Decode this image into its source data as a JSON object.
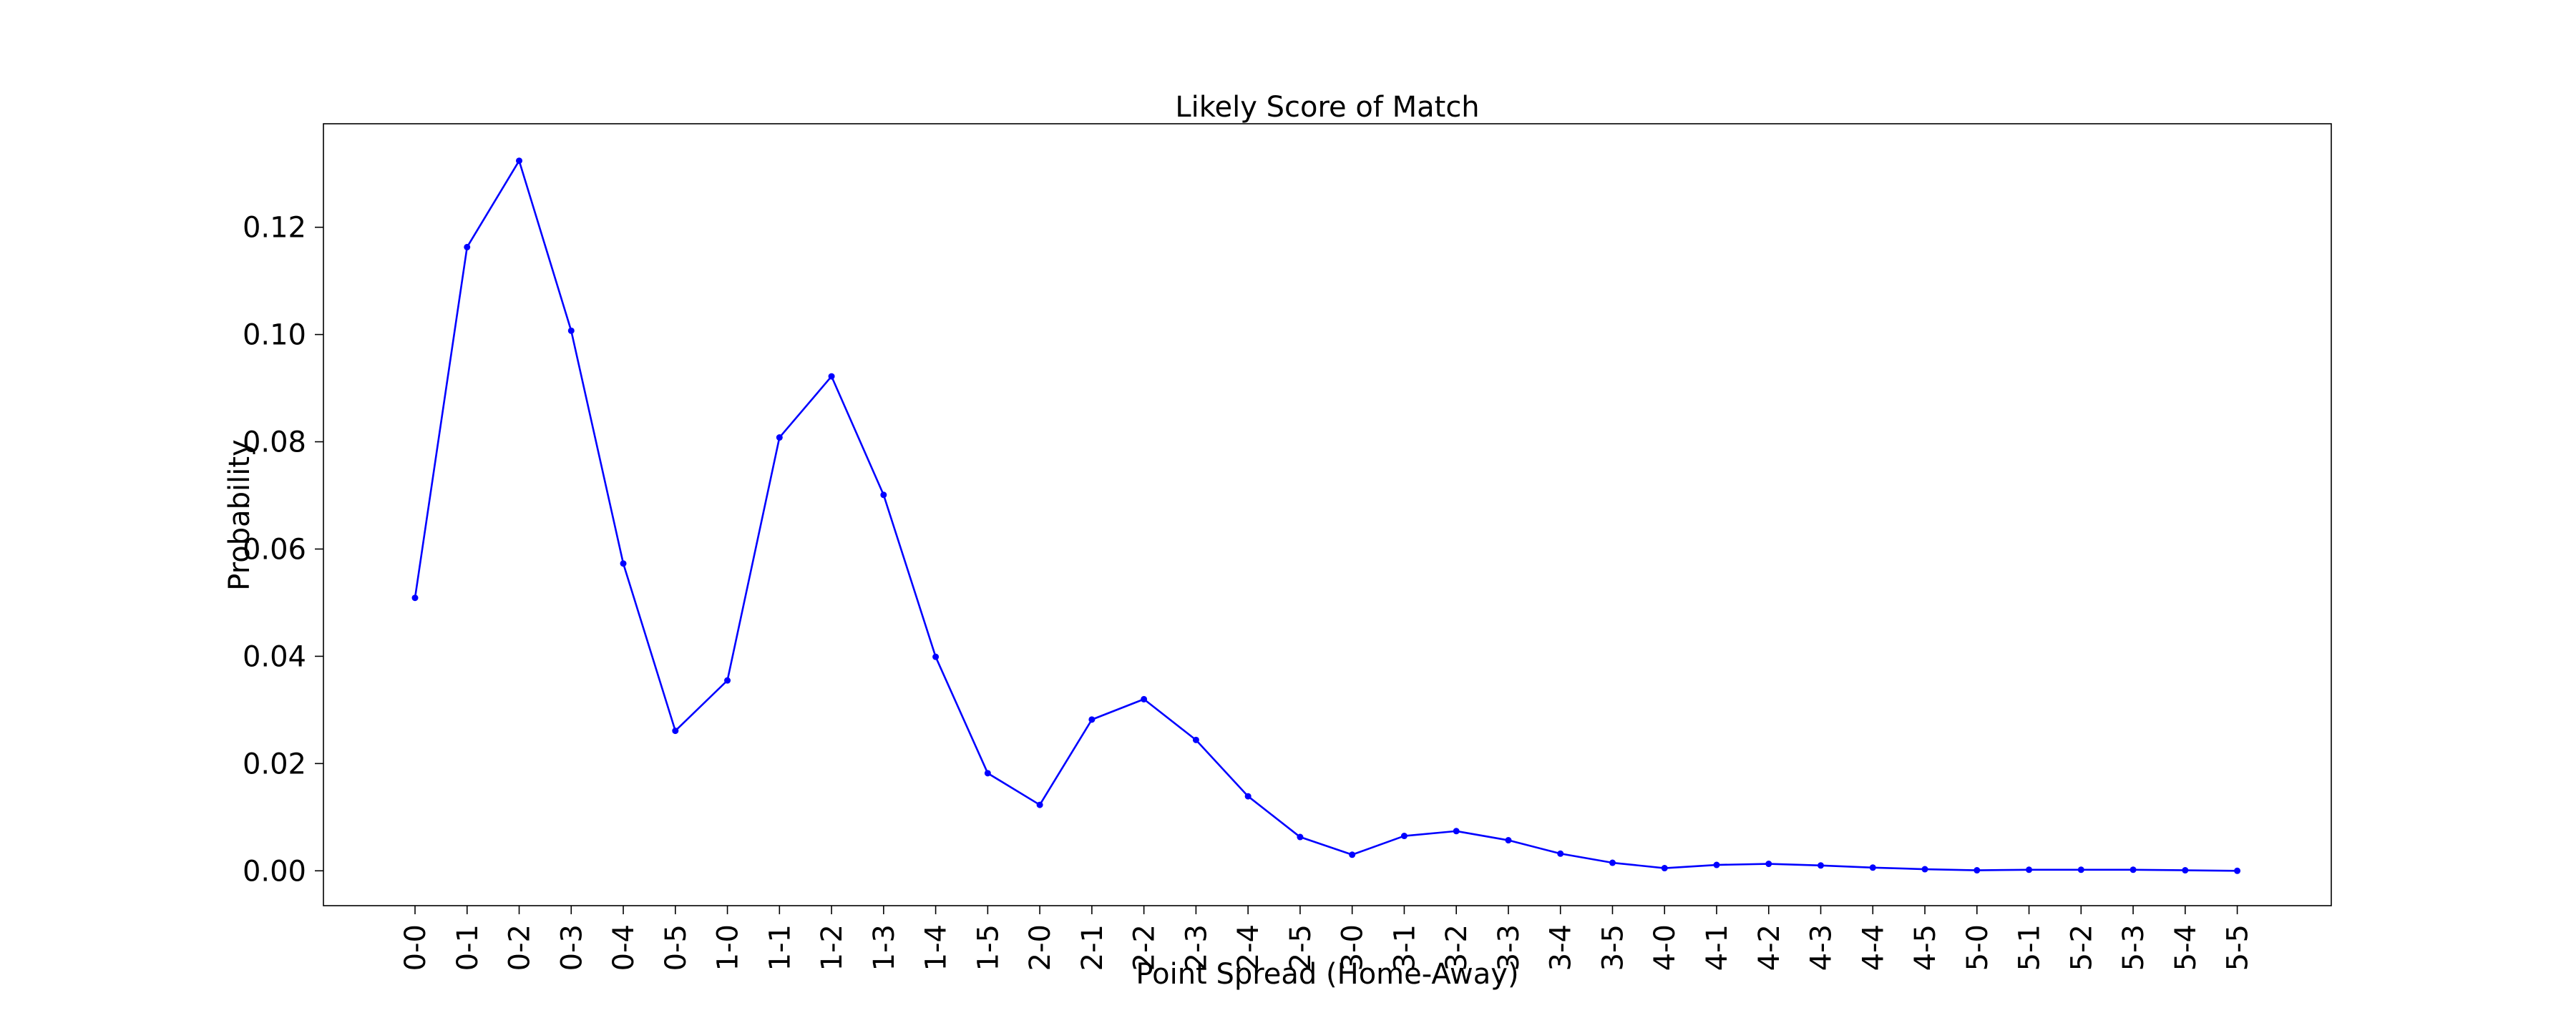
{
  "chart_data": {
    "type": "line",
    "title": "Likely Score of Match",
    "xlabel": "Point Spread (Home-Away)",
    "ylabel": "Probability",
    "ylim": [
      -0.0065,
      0.1393
    ],
    "yticks": [
      0.0,
      0.02,
      0.04,
      0.06,
      0.08,
      0.1,
      0.12
    ],
    "ytick_labels": [
      "0.00",
      "0.02",
      "0.04",
      "0.06",
      "0.08",
      "0.10",
      "0.12"
    ],
    "grid": false,
    "categories": [
      "0-0",
      "0-1",
      "0-2",
      "0-3",
      "0-4",
      "0-5",
      "1-0",
      "1-1",
      "1-2",
      "1-3",
      "1-4",
      "1-5",
      "2-0",
      "2-1",
      "2-2",
      "2-3",
      "2-4",
      "2-5",
      "3-0",
      "3-1",
      "3-2",
      "3-3",
      "3-4",
      "3-5",
      "4-0",
      "4-1",
      "4-2",
      "4-3",
      "4-4",
      "4-5",
      "5-0",
      "5-1",
      "5-2",
      "5-3",
      "5-4",
      "5-5"
    ],
    "series": [
      {
        "color": "#0000ff",
        "marker": "dot",
        "values": [
          0.0509,
          0.1163,
          0.1324,
          0.1007,
          0.0573,
          0.0261,
          0.0355,
          0.0808,
          0.0922,
          0.0701,
          0.0399,
          0.0182,
          0.0123,
          0.0282,
          0.032,
          0.0244,
          0.0139,
          0.0063,
          0.003,
          0.0065,
          0.0074,
          0.0057,
          0.0032,
          0.0015,
          0.0005,
          0.0011,
          0.0013,
          0.001,
          0.0006,
          0.0003,
          0.0001,
          0.0002,
          0.0002,
          0.0002,
          0.0001,
          0.0
        ]
      }
    ]
  }
}
